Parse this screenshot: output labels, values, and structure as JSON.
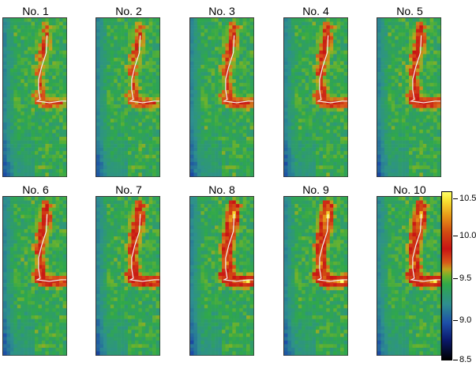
{
  "panels": [
    {
      "label": "No. 1",
      "hot": 0.0
    },
    {
      "label": "No. 2",
      "hot": 0.05
    },
    {
      "label": "No. 3",
      "hot": 0.15
    },
    {
      "label": "No. 4",
      "hot": 0.25
    },
    {
      "label": "No. 5",
      "hot": 0.3
    },
    {
      "label": "No. 6",
      "hot": 0.35
    },
    {
      "label": "No. 7",
      "hot": 0.45
    },
    {
      "label": "No. 8",
      "hot": 0.85
    },
    {
      "label": "No. 9",
      "hot": 0.9
    },
    {
      "label": "No. 10",
      "hot": 0.8
    }
  ],
  "colorbar": {
    "ticks": [
      "10.5",
      "10.0",
      "9.5",
      "9.0",
      "8.5"
    ],
    "colors": [
      "#000000",
      "#0b1a6e",
      "#2e8f8f",
      "#2fa84a",
      "#d8581a",
      "#c81414",
      "#f7e233"
    ]
  }
}
